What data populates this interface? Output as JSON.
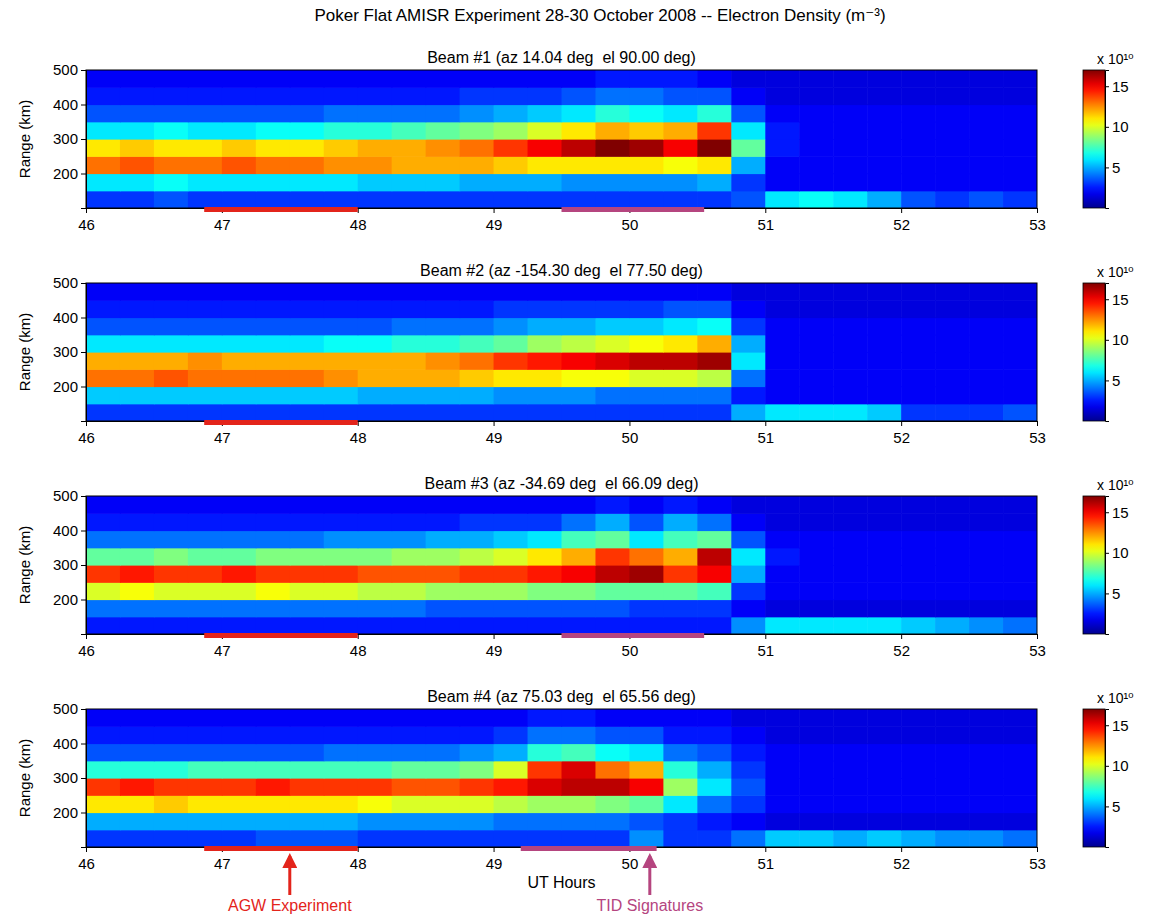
{
  "title": "Poker Flat AMISR Experiment 28-30 October 2008 -- Electron Density (m⁻³)",
  "chart_data": [
    {
      "type": "heatmap",
      "title": "Beam #1 (az 14.04 deg  el 90.00 deg)",
      "ylabel": "Range (km)",
      "xlim": [
        46,
        53
      ],
      "xticks": [
        46,
        47,
        48,
        49,
        50,
        51,
        52,
        53
      ],
      "ylim": [
        100,
        500
      ],
      "yticks": [
        200,
        300,
        400,
        500
      ],
      "x": [
        46,
        46.25,
        46.5,
        46.75,
        47,
        47.25,
        47.5,
        47.75,
        48,
        48.25,
        48.5,
        48.75,
        49,
        49.25,
        49.5,
        49.75,
        50,
        50.25,
        50.5,
        50.75,
        51,
        51.25,
        51.5,
        51.75,
        52,
        52.25,
        52.5,
        52.75
      ],
      "y": [
        100,
        150,
        200,
        250,
        300,
        350,
        400,
        450
      ],
      "values": [
        [
          3,
          3,
          3.5,
          3,
          3,
          3,
          3,
          3,
          3,
          3,
          3,
          3,
          3,
          3,
          3,
          3,
          3,
          3,
          3,
          3.5,
          6,
          6.5,
          6,
          5,
          3.5,
          3,
          3.5,
          3
        ],
        [
          6,
          6,
          6.5,
          6,
          6,
          6,
          6,
          6,
          5.5,
          5.5,
          5.5,
          5,
          5,
          5,
          4.5,
          4.5,
          4.5,
          4.5,
          5,
          3,
          2,
          2,
          2,
          2,
          2,
          2,
          2,
          2
        ],
        [
          13,
          13.5,
          13,
          13,
          13.5,
          13,
          13,
          12.5,
          12.5,
          12,
          12,
          12,
          11.5,
          11,
          11,
          11,
          11,
          10.5,
          11,
          5,
          2,
          2,
          2,
          2,
          2,
          2,
          2,
          2
        ],
        [
          11,
          11.5,
          11,
          11,
          11.5,
          11,
          11,
          11.5,
          12,
          12,
          12.5,
          13,
          14,
          15,
          16,
          17,
          16.5,
          15,
          17,
          8,
          2.5,
          2,
          2,
          2,
          2,
          2,
          2,
          2
        ],
        [
          6,
          6,
          6.5,
          6,
          6,
          6.5,
          6.5,
          7,
          7,
          7.5,
          8,
          8.5,
          9,
          10,
          11,
          12,
          11.5,
          12,
          14,
          6,
          2.5,
          2,
          2,
          2,
          2,
          2,
          2,
          2
        ],
        [
          3.5,
          3.5,
          3.5,
          3.5,
          3.5,
          3.5,
          3.5,
          4,
          4,
          4,
          4,
          4.5,
          5,
          5.5,
          6,
          7,
          6.5,
          6,
          7,
          3.5,
          2,
          2,
          2,
          2,
          2,
          2,
          2,
          2
        ],
        [
          2.5,
          2.5,
          2.5,
          2.5,
          2.5,
          2.5,
          2.5,
          2.5,
          2.5,
          2.5,
          2.5,
          3,
          3,
          3,
          3.5,
          4,
          4,
          3.5,
          3.5,
          2,
          1.5,
          1.5,
          1.5,
          1.5,
          1.5,
          1.5,
          1.5,
          1.5
        ],
        [
          2,
          2,
          2,
          2,
          2,
          2,
          2,
          2,
          2,
          2,
          2,
          2,
          2,
          2,
          2,
          2.5,
          2.5,
          2.5,
          2,
          1.5,
          1.5,
          1.5,
          1.5,
          1.5,
          1.5,
          1.5,
          1.5,
          1.5
        ]
      ],
      "colorbar": {
        "range": [
          0,
          17
        ],
        "ticks": [
          5,
          10,
          15
        ],
        "label": "x 10¹⁰"
      },
      "spans": [
        {
          "start": 46.87,
          "end": 48.0,
          "color": "#e3241b"
        },
        {
          "start": 49.5,
          "end": 50.55,
          "color": "#b5457f"
        }
      ]
    },
    {
      "type": "heatmap",
      "title": "Beam #2 (az -154.30 deg  el 77.50 deg)",
      "ylabel": "Range (km)",
      "xlim": [
        46,
        53
      ],
      "xticks": [
        46,
        47,
        48,
        49,
        50,
        51,
        52,
        53
      ],
      "ylim": [
        100,
        500
      ],
      "yticks": [
        200,
        300,
        400,
        500
      ],
      "x": [
        46,
        46.25,
        46.5,
        46.75,
        47,
        47.25,
        47.5,
        47.75,
        48,
        48.25,
        48.5,
        48.75,
        49,
        49.25,
        49.5,
        49.75,
        50,
        50.25,
        50.5,
        50.75,
        51,
        51.25,
        51.5,
        51.75,
        52,
        52.25,
        52.5,
        52.75
      ],
      "y": [
        100,
        150,
        200,
        250,
        300,
        350,
        400,
        450
      ],
      "values": [
        [
          3,
          3,
          3,
          3,
          3,
          3,
          3,
          3,
          3,
          3,
          3,
          3,
          3,
          3,
          3,
          3,
          3,
          3,
          3,
          5,
          6,
          6,
          6,
          5.5,
          3,
          3,
          3,
          3.5
        ],
        [
          5.5,
          5.5,
          5.5,
          5.5,
          5.5,
          5.5,
          5.5,
          5.5,
          5,
          5,
          5,
          5,
          4.5,
          4.5,
          4.5,
          4,
          4,
          4,
          4,
          2.5,
          2,
          2,
          2,
          2,
          2,
          2,
          2,
          2
        ],
        [
          13,
          13,
          13.5,
          13,
          13,
          13,
          13,
          12.5,
          12,
          12,
          12,
          11.5,
          11,
          11,
          10.5,
          10.5,
          10,
          10,
          9.5,
          4,
          2,
          2,
          2,
          2,
          2,
          2,
          2,
          2
        ],
        [
          12,
          12,
          12,
          12.5,
          12,
          12,
          12,
          12,
          12,
          12,
          12.5,
          13,
          14,
          14.5,
          15,
          15.5,
          16,
          16,
          16.5,
          6,
          2,
          2,
          2,
          2,
          2,
          2,
          2,
          2
        ],
        [
          6,
          6,
          6,
          6,
          6,
          6,
          6,
          6.5,
          6.5,
          7,
          7,
          7.5,
          8,
          9,
          9.5,
          10,
          10.5,
          11,
          12,
          5,
          2,
          2,
          2,
          2,
          2,
          2,
          2,
          2
        ],
        [
          3.5,
          3.5,
          3.5,
          3.5,
          3.5,
          3.5,
          3.5,
          3.5,
          3.5,
          4,
          4,
          4,
          4.5,
          5,
          5,
          5.5,
          5.5,
          6,
          6.5,
          3,
          2,
          2,
          2,
          2,
          2,
          2,
          2,
          2
        ],
        [
          2.5,
          2.5,
          2.5,
          2.5,
          2.5,
          2.5,
          2.5,
          2.5,
          2.5,
          2.5,
          2.5,
          2.5,
          3,
          3,
          3,
          3,
          3,
          3.5,
          3.5,
          2,
          1.5,
          1.5,
          1.5,
          1.5,
          1.5,
          1.5,
          1.5,
          1.5
        ],
        [
          2,
          2,
          2,
          2,
          2,
          2,
          2,
          2,
          2,
          2,
          2,
          2,
          2,
          2,
          2,
          2,
          2,
          2,
          2,
          1.5,
          1.5,
          1.5,
          1.5,
          1.5,
          1.5,
          1.5,
          1.5,
          1.5
        ]
      ],
      "colorbar": {
        "range": [
          0,
          17
        ],
        "ticks": [
          5,
          10,
          15
        ],
        "label": "x 10¹⁰"
      },
      "spans": [
        {
          "start": 46.87,
          "end": 48.0,
          "color": "#e3241b"
        }
      ]
    },
    {
      "type": "heatmap",
      "title": "Beam #3 (az -34.69 deg  el 66.09 deg)",
      "ylabel": "Range (km)",
      "xlim": [
        46,
        53
      ],
      "xticks": [
        46,
        47,
        48,
        49,
        50,
        51,
        52,
        53
      ],
      "ylim": [
        100,
        500
      ],
      "yticks": [
        200,
        300,
        400,
        500
      ],
      "x": [
        46,
        46.25,
        46.5,
        46.75,
        47,
        47.25,
        47.5,
        47.75,
        48,
        48.25,
        48.5,
        48.75,
        49,
        49.25,
        49.5,
        49.75,
        50,
        50.25,
        50.5,
        50.75,
        51,
        51.25,
        51.5,
        51.75,
        52,
        52.25,
        52.5,
        52.75
      ],
      "y": [
        100,
        150,
        200,
        250,
        300,
        350,
        400,
        450
      ],
      "values": [
        [
          2.5,
          2.5,
          2.5,
          2.5,
          2.5,
          2.5,
          2.5,
          2.5,
          2.5,
          2.5,
          2.5,
          2.5,
          2.5,
          2.5,
          2.5,
          2.5,
          2.5,
          2.5,
          2.5,
          4.5,
          6,
          6,
          6,
          6,
          5.5,
          5,
          4.5,
          4
        ],
        [
          4,
          4,
          4,
          4,
          4,
          4,
          4,
          4,
          4,
          4,
          3.5,
          3.5,
          3.5,
          3.5,
          3.5,
          3.5,
          3,
          3,
          3,
          2,
          1.5,
          1.5,
          1.5,
          1.5,
          1.5,
          1.5,
          1.5,
          1.5
        ],
        [
          10,
          10.5,
          10,
          10,
          10,
          10.5,
          10,
          10,
          9.5,
          9.5,
          9,
          9,
          9,
          8.5,
          8.5,
          8,
          8,
          8,
          7.5,
          3,
          2,
          2,
          2,
          2,
          2,
          2,
          2,
          2
        ],
        [
          14,
          14.5,
          14,
          14,
          14.5,
          14,
          14,
          14,
          13.5,
          13.5,
          13.5,
          14,
          14,
          14.5,
          15,
          16,
          16.5,
          14,
          15,
          5,
          2,
          2,
          2,
          2,
          2,
          2,
          2,
          2
        ],
        [
          8,
          8,
          8.5,
          8,
          8,
          8.5,
          8.5,
          8.5,
          8.5,
          9,
          9,
          9.5,
          10,
          11,
          12,
          14,
          13,
          12,
          16,
          6,
          2.5,
          2,
          2,
          2,
          2,
          2,
          2,
          2
        ],
        [
          4,
          4,
          4,
          4,
          4,
          4,
          4,
          4.5,
          4.5,
          4.5,
          5,
          5,
          5.5,
          6,
          7.5,
          8,
          6,
          7.5,
          8,
          3.5,
          2,
          2,
          2,
          2,
          2,
          2,
          2,
          2
        ],
        [
          2.5,
          2.5,
          2.5,
          2.5,
          2.5,
          2.5,
          2.5,
          2.5,
          2.5,
          2.5,
          2.5,
          3,
          3,
          3,
          4,
          5,
          3.5,
          5,
          4,
          2,
          1.5,
          1.5,
          1.5,
          1.5,
          1.5,
          1.5,
          1.5,
          1.5
        ],
        [
          2,
          2,
          2,
          2,
          2,
          2,
          2,
          2,
          2,
          2,
          2,
          2,
          2,
          2,
          2,
          2.5,
          2,
          2.5,
          2,
          1.5,
          1.5,
          1.5,
          1.5,
          1.5,
          1.5,
          1.5,
          1.5,
          1.5
        ]
      ],
      "colorbar": {
        "range": [
          0,
          17
        ],
        "ticks": [
          5,
          10,
          15
        ],
        "label": "x 10¹⁰"
      },
      "spans": [
        {
          "start": 46.87,
          "end": 48.0,
          "color": "#e3241b"
        },
        {
          "start": 49.5,
          "end": 50.55,
          "color": "#b5457f"
        }
      ]
    },
    {
      "type": "heatmap",
      "title": "Beam #4 (az 75.03 deg  el 65.56 deg)",
      "ylabel": "Range (km)",
      "xlabel": "UT Hours",
      "xlim": [
        46,
        53
      ],
      "xticks": [
        46,
        47,
        48,
        49,
        50,
        51,
        52,
        53
      ],
      "ylim": [
        100,
        500
      ],
      "yticks": [
        200,
        300,
        400,
        500
      ],
      "x": [
        46,
        46.25,
        46.5,
        46.75,
        47,
        47.25,
        47.5,
        47.75,
        48,
        48.25,
        48.5,
        48.75,
        49,
        49.25,
        49.5,
        49.75,
        50,
        50.25,
        50.5,
        50.75,
        51,
        51.25,
        51.5,
        51.75,
        52,
        52.25,
        52.5,
        52.75
      ],
      "y": [
        100,
        150,
        200,
        250,
        300,
        350,
        400,
        450
      ],
      "values": [
        [
          3,
          3,
          3,
          3,
          3,
          3.5,
          3.5,
          3.5,
          3,
          3,
          3,
          3,
          3,
          3,
          3,
          3,
          4.5,
          3,
          3,
          4,
          5.5,
          5.5,
          5,
          5.5,
          5,
          4.5,
          4.5,
          4
        ],
        [
          5,
          5,
          5,
          5,
          5,
          5,
          5,
          5,
          4.5,
          4.5,
          4.5,
          4.5,
          4,
          4,
          4,
          4,
          3.5,
          3,
          2.5,
          2,
          1.5,
          1.5,
          1.5,
          1.5,
          1.5,
          1.5,
          1.5,
          1.5
        ],
        [
          11,
          11,
          11.5,
          11,
          11,
          11,
          11,
          11,
          10.5,
          10,
          10,
          10,
          9.5,
          9,
          9,
          8.5,
          8,
          6,
          4,
          3,
          2,
          2,
          2,
          2,
          2,
          2,
          2,
          2
        ],
        [
          14,
          14.5,
          14,
          14,
          14,
          14.5,
          14,
          14,
          14,
          13.5,
          13.5,
          14,
          14.5,
          15.5,
          16,
          16,
          15,
          9,
          6,
          3.5,
          2,
          2,
          2,
          2,
          2,
          2,
          2,
          2
        ],
        [
          7,
          7,
          7,
          7.5,
          7.5,
          7.5,
          7.5,
          7.5,
          7.5,
          8,
          8,
          8.5,
          10,
          14,
          15.5,
          13,
          12,
          7,
          5,
          3,
          2,
          2,
          2,
          2,
          2,
          2,
          2,
          2
        ],
        [
          3.5,
          3.5,
          3.5,
          3.5,
          3.5,
          3.5,
          3.5,
          4,
          4,
          4,
          4,
          4.5,
          5,
          7,
          7.5,
          6.5,
          6,
          4,
          3.5,
          2.5,
          2,
          2,
          2,
          2,
          2,
          2,
          2,
          2
        ],
        [
          2.5,
          2.5,
          2.5,
          2.5,
          2.5,
          2.5,
          2.5,
          2.5,
          2.5,
          2.5,
          2.5,
          2.5,
          3,
          4,
          4,
          3.5,
          3.5,
          2.5,
          2.5,
          2,
          1.5,
          1.5,
          1.5,
          1.5,
          1.5,
          1.5,
          1.5,
          1.5
        ],
        [
          2,
          2,
          2,
          2,
          2,
          2,
          2,
          2,
          2,
          2,
          2,
          2,
          2,
          2.5,
          2.5,
          2,
          2,
          2,
          2,
          1.5,
          1.5,
          1.5,
          1.5,
          1.5,
          1.5,
          1.5,
          1.5,
          1.5
        ]
      ],
      "colorbar": {
        "range": [
          0,
          17
        ],
        "ticks": [
          5,
          10,
          15
        ],
        "label": "x 10¹⁰"
      },
      "spans": [
        {
          "start": 46.87,
          "end": 48.0,
          "color": "#e3241b"
        },
        {
          "start": 49.2,
          "end": 50.2,
          "color": "#b5457f"
        }
      ],
      "annotations": [
        {
          "text": "AGW Experiment",
          "x": 47.5,
          "color": "#e3241b"
        },
        {
          "text": "TID Signatures",
          "x": 50.15,
          "color": "#b5457f"
        }
      ]
    }
  ]
}
